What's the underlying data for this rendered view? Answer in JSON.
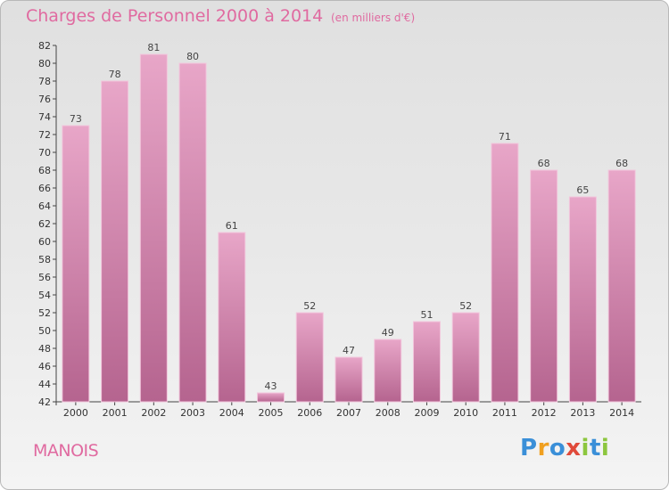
{
  "chart_data": {
    "type": "bar",
    "title": "Charges de Personnel 2000 à 2014",
    "subtitle": "(en milliers d'€)",
    "categories": [
      "2000",
      "2001",
      "2002",
      "2003",
      "2004",
      "2005",
      "2006",
      "2007",
      "2008",
      "2009",
      "2010",
      "2011",
      "2012",
      "2013",
      "2014"
    ],
    "values": [
      73,
      78,
      81,
      80,
      61,
      43,
      52,
      47,
      49,
      51,
      52,
      71,
      68,
      65,
      68
    ],
    "ylim": [
      42,
      82
    ],
    "yticks": [
      42,
      44,
      46,
      48,
      50,
      52,
      54,
      56,
      58,
      60,
      62,
      64,
      66,
      68,
      70,
      72,
      74,
      76,
      78,
      80,
      82
    ],
    "grid": false,
    "bar_color": "#c97aa5"
  },
  "commune": "MANOIS",
  "logo": {
    "letters": [
      "P",
      "r",
      "o",
      "x",
      "i",
      "t",
      "i"
    ]
  }
}
